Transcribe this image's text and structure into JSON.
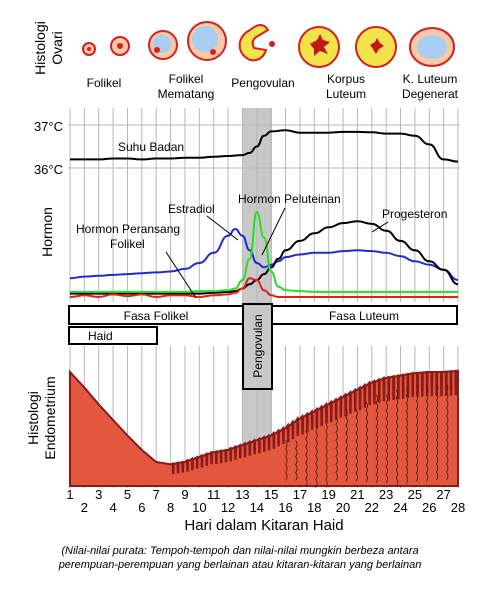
{
  "ovary": {
    "side_label_1": "Histologi",
    "side_label_2": "Ovari",
    "stages": [
      {
        "l1": "Folikel",
        "l2": ""
      },
      {
        "l1": "Folikel",
        "l2": "Mematang"
      },
      {
        "l1": "Pengovulan",
        "l2": ""
      },
      {
        "l1": "Korpus",
        "l2": "Luteum"
      },
      {
        "l1": "K. Luteum",
        "l2": "Degenerat"
      }
    ]
  },
  "temperature": {
    "tick_37": "37°C",
    "tick_36": "36°C",
    "label": "Suhu Badan",
    "series_days": [
      1,
      2,
      3,
      4,
      5,
      6,
      7,
      8,
      9,
      10,
      11,
      12,
      13,
      13.5,
      14,
      14.5,
      15,
      16,
      17,
      18,
      19,
      20,
      21,
      22,
      23,
      24,
      25,
      26,
      27,
      28
    ],
    "series_celsius": [
      36.2,
      36.2,
      36.2,
      36.22,
      36.22,
      36.2,
      36.22,
      36.22,
      36.24,
      36.24,
      36.26,
      36.28,
      36.3,
      36.35,
      36.5,
      36.75,
      36.85,
      36.88,
      36.82,
      36.82,
      36.82,
      36.84,
      36.84,
      36.83,
      36.8,
      36.8,
      36.75,
      36.55,
      36.2,
      36.15
    ]
  },
  "hormones": {
    "side_label": "Hormon",
    "labels": {
      "estradiol": "Estradiol",
      "lh": "Hormon Peluteinan",
      "fsh_1": "Hormon Peransang",
      "fsh_2": "Folikel",
      "progesterone": "Progesteron"
    },
    "colors": {
      "estradiol": "#2228d8",
      "lh": "#22e022",
      "fsh": "#e81e1e",
      "progesterone": "#000000"
    },
    "days": [
      1,
      2,
      3,
      4,
      5,
      6,
      7,
      8,
      9,
      10,
      11,
      12,
      12.5,
      13,
      13.5,
      14,
      14.5,
      15,
      15.5,
      16,
      17,
      18,
      19,
      20,
      21,
      22,
      23,
      24,
      25,
      26,
      27,
      28
    ],
    "estradiol": [
      0.22,
      0.24,
      0.25,
      0.26,
      0.27,
      0.28,
      0.29,
      0.3,
      0.33,
      0.4,
      0.52,
      0.72,
      0.8,
      0.72,
      0.55,
      0.4,
      0.35,
      0.38,
      0.42,
      0.47,
      0.5,
      0.52,
      0.52,
      0.54,
      0.55,
      0.54,
      0.52,
      0.48,
      0.42,
      0.38,
      0.32,
      0.2
    ],
    "lh": [
      0.06,
      0.06,
      0.06,
      0.06,
      0.06,
      0.06,
      0.06,
      0.06,
      0.06,
      0.07,
      0.07,
      0.08,
      0.1,
      0.2,
      0.45,
      1.0,
      0.7,
      0.3,
      0.12,
      0.08,
      0.07,
      0.06,
      0.06,
      0.06,
      0.06,
      0.06,
      0.06,
      0.06,
      0.06,
      0.06,
      0.06,
      0.06
    ],
    "fsh": [
      0.0,
      0.02,
      0.0,
      0.03,
      0.01,
      0.03,
      0.0,
      0.02,
      0.02,
      0.0,
      0.02,
      0.03,
      0.05,
      0.1,
      0.22,
      0.2,
      0.08,
      0.02,
      0.0,
      0.0,
      0.0,
      0.0,
      0.0,
      0.0,
      0.0,
      0.0,
      0.0,
      0.0,
      0.0,
      0.0,
      0.0,
      0.0
    ],
    "progesterone": [
      0.04,
      0.04,
      0.04,
      0.04,
      0.04,
      0.04,
      0.04,
      0.04,
      0.04,
      0.04,
      0.05,
      0.06,
      0.07,
      0.1,
      0.15,
      0.2,
      0.27,
      0.35,
      0.45,
      0.55,
      0.66,
      0.75,
      0.82,
      0.87,
      0.89,
      0.86,
      0.78,
      0.66,
      0.55,
      0.42,
      0.32,
      0.15
    ]
  },
  "phases": {
    "follicular": "Fasa Folikel",
    "luteal": "Fasa Luteum",
    "menses": "Haid",
    "ovulation": "Pengovulan"
  },
  "endometrium": {
    "side_label_1": "Histologi",
    "side_label_2": "Endometrium",
    "days": [
      1,
      2,
      3,
      4,
      5,
      6,
      7,
      8,
      9,
      10,
      11,
      12,
      13,
      14,
      15,
      16,
      17,
      18,
      19,
      20,
      21,
      22,
      23,
      24,
      25,
      26,
      27,
      28
    ],
    "thickness": [
      0.95,
      0.82,
      0.68,
      0.55,
      0.42,
      0.3,
      0.2,
      0.18,
      0.2,
      0.24,
      0.28,
      0.3,
      0.34,
      0.38,
      0.42,
      0.48,
      0.56,
      0.62,
      0.68,
      0.74,
      0.8,
      0.86,
      0.9,
      0.92,
      0.94,
      0.95,
      0.95,
      0.96
    ],
    "fill_color": "#e2573e",
    "edge_color": "#8b1a1a"
  },
  "axis": {
    "ticks": [
      "1",
      "2",
      "3",
      "4",
      "5",
      "6",
      "7",
      "8",
      "9",
      "10",
      "11",
      "12",
      "13",
      "14",
      "15",
      "16",
      "17",
      "18",
      "19",
      "20",
      "21",
      "22",
      "23",
      "24",
      "25",
      "26",
      "27",
      "28"
    ],
    "title": "Hari dalam Kitaran Haid"
  },
  "note": {
    "line1": "(Nilai-nilai purata: Tempoh-tempoh dan nilai-nilai mungkin berbeza antara",
    "line2": "perempuan-perempuan yang berlainan atau kitaran-kitaran yang berlainan"
  }
}
